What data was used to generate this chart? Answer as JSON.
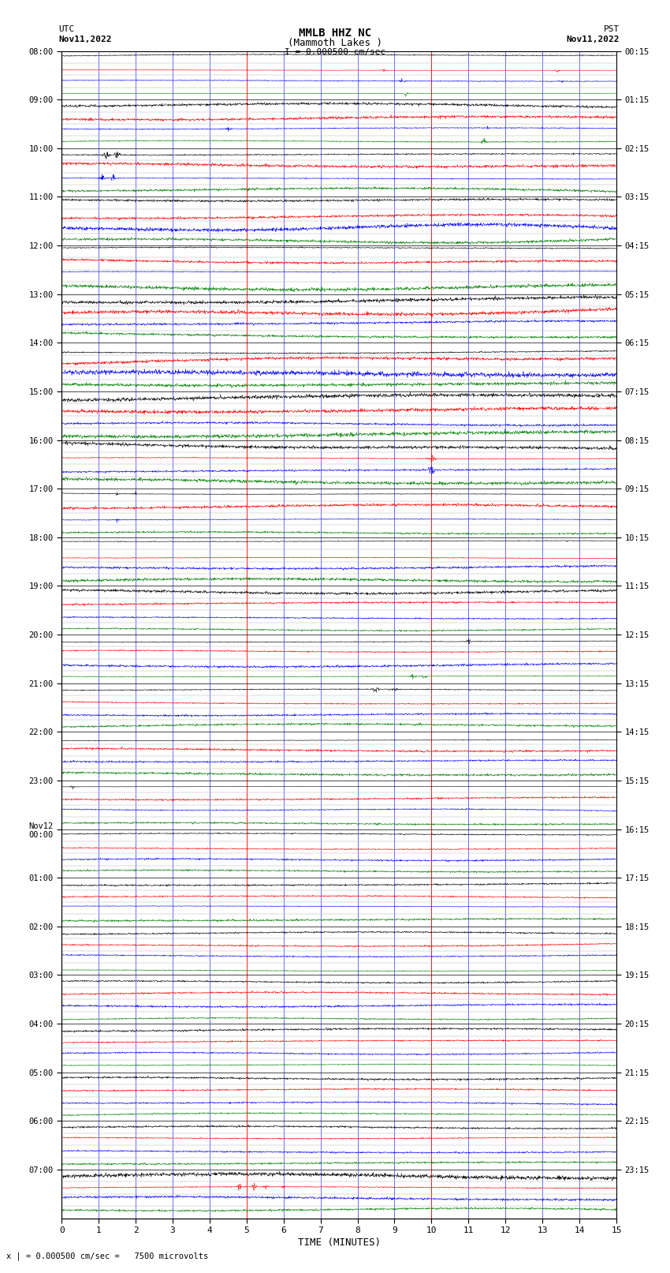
{
  "title_line1": "MMLB HHZ NC",
  "title_line2": "(Mammoth Lakes )",
  "title_line3": "I = 0.000500 cm/sec",
  "left_label_top": "UTC",
  "left_label_date": "Nov11,2022",
  "right_label_top": "PST",
  "right_label_date": "Nov11,2022",
  "bottom_label": "TIME (MINUTES)",
  "bottom_note": "x | = 0.000500 cm/sec =   7500 microvolts",
  "utc_times": [
    "08:00",
    "09:00",
    "10:00",
    "11:00",
    "12:00",
    "13:00",
    "14:00",
    "15:00",
    "16:00",
    "17:00",
    "18:00",
    "19:00",
    "20:00",
    "21:00",
    "22:00",
    "23:00",
    "Nov12\n00:00",
    "01:00",
    "02:00",
    "03:00",
    "04:00",
    "05:00",
    "06:00",
    "07:00"
  ],
  "pst_times": [
    "00:15",
    "01:15",
    "02:15",
    "03:15",
    "04:15",
    "05:15",
    "06:15",
    "07:15",
    "08:15",
    "09:15",
    "10:15",
    "11:15",
    "12:15",
    "13:15",
    "14:15",
    "15:15",
    "16:15",
    "17:15",
    "18:15",
    "19:15",
    "20:15",
    "21:15",
    "22:15",
    "23:15"
  ],
  "num_hours": 24,
  "traces_per_hour": 4,
  "minutes": 15,
  "colors": [
    "black",
    "red",
    "blue",
    "green"
  ],
  "bg_color": "#ffffff",
  "grid_color_minor": "blue",
  "grid_color_major": "red",
  "grid_color_gray": "#aaaaaa"
}
